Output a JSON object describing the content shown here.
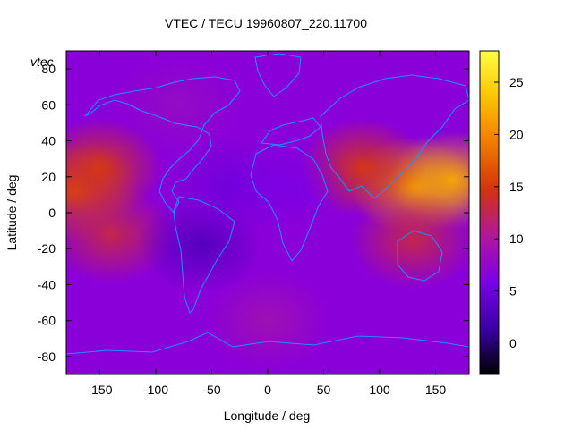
{
  "chart_data": {
    "type": "heatmap",
    "title": "VTEC / TECU 19960807_220.11700",
    "xlabel": "Longitude / deg",
    "ylabel": "Latitude / deg",
    "xlim": [
      -180,
      180
    ],
    "ylim": [
      -90,
      90
    ],
    "x_ticks": [
      -150,
      -100,
      -50,
      0,
      50,
      100,
      150
    ],
    "y_ticks": [
      -80,
      -60,
      -40,
      -20,
      0,
      20,
      40,
      60,
      80
    ],
    "colorbar": {
      "range": [
        -3,
        28
      ],
      "ticks": [
        0,
        5,
        10,
        15,
        20,
        25
      ],
      "palette": [
        "#000000",
        "#3a00a6",
        "#7a00e8",
        "#b0189a",
        "#d4320f",
        "#f07a00",
        "#fbc400",
        "#ffff40"
      ]
    },
    "legend": "vtec",
    "grid": false,
    "features": [
      {
        "lon": -172,
        "lat": 12,
        "value": 16
      },
      {
        "lon": -150,
        "lat": 25,
        "value": 15
      },
      {
        "lon": -140,
        "lat": -12,
        "value": 13
      },
      {
        "lon": 130,
        "lat": 15,
        "value": 21
      },
      {
        "lon": 165,
        "lat": 18,
        "value": 22
      },
      {
        "lon": 85,
        "lat": 25,
        "value": 15
      },
      {
        "lon": 130,
        "lat": -15,
        "value": 13
      },
      {
        "lon": -60,
        "lat": -18,
        "value": 3
      },
      {
        "lon": -35,
        "lat": 15,
        "value": 5
      },
      {
        "lon": 15,
        "lat": 15,
        "value": 6
      },
      {
        "lon": -80,
        "lat": 60,
        "value": 8
      },
      {
        "lon": 0,
        "lat": -60,
        "value": 9
      }
    ]
  }
}
